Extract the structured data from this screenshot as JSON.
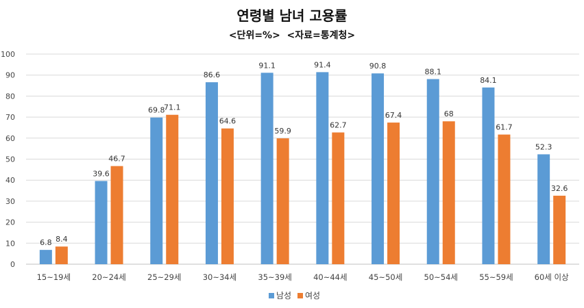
{
  "chart_data": {
    "type": "bar",
    "title": "연령별 남녀 고용률",
    "subtitle": "<단위=%>  <자료=통계청>",
    "categories": [
      "15~19세",
      "20~24세",
      "25~29세",
      "30~34세",
      "35~39세",
      "40~44세",
      "45~50세",
      "50~54세",
      "55~59세",
      "60세 이상"
    ],
    "series": [
      {
        "name": "남성",
        "color": "#5b9bd5",
        "values": [
          6.8,
          39.6,
          69.8,
          86.6,
          91.1,
          91.4,
          90.8,
          88.1,
          84.1,
          52.3
        ]
      },
      {
        "name": "여성",
        "color": "#ed7d31",
        "values": [
          8.4,
          46.7,
          71.1,
          64.6,
          59.9,
          62.7,
          67.4,
          68,
          61.7,
          32.6
        ]
      }
    ],
    "ylim": [
      0,
      100
    ],
    "yticks": [
      0,
      10,
      20,
      30,
      40,
      50,
      60,
      70,
      80,
      90,
      100
    ],
    "grid": true,
    "legend_position": "bottom-center",
    "xlabel": "",
    "ylabel": ""
  }
}
